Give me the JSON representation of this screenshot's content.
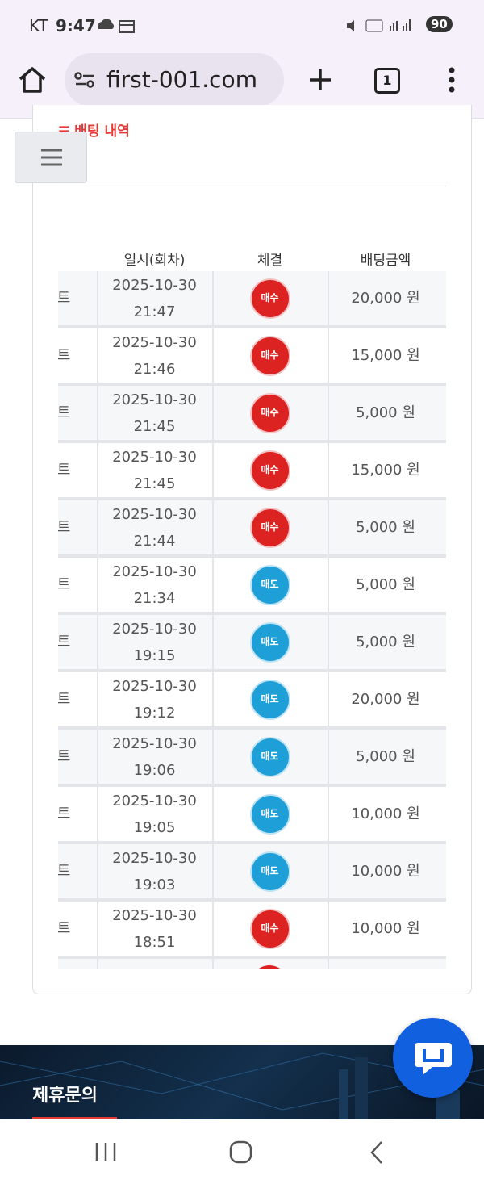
{
  "status_bar": {
    "carrier": "KT",
    "time": "9:47",
    "battery": "90"
  },
  "browser": {
    "url": "first-001.com",
    "tab_count": "1"
  },
  "section": {
    "title": "배팅 내역"
  },
  "table": {
    "headers": [
      "일시(회차)",
      "체결",
      "배팅금액"
    ],
    "rows": [
      {
        "game": "트",
        "date": "2025-10-30",
        "time": "21:47",
        "side": "매수",
        "amount": "20,000 원"
      },
      {
        "game": "트",
        "date": "2025-10-30",
        "time": "21:46",
        "side": "매수",
        "amount": "15,000 원"
      },
      {
        "game": "트",
        "date": "2025-10-30",
        "time": "21:45",
        "side": "매수",
        "amount": "5,000 원"
      },
      {
        "game": "트",
        "date": "2025-10-30",
        "time": "21:45",
        "side": "매수",
        "amount": "15,000 원"
      },
      {
        "game": "트",
        "date": "2025-10-30",
        "time": "21:44",
        "side": "매수",
        "amount": "5,000 원"
      },
      {
        "game": "트",
        "date": "2025-10-30",
        "time": "21:34",
        "side": "매도",
        "amount": "5,000 원"
      },
      {
        "game": "트",
        "date": "2025-10-30",
        "time": "19:15",
        "side": "매도",
        "amount": "5,000 원"
      },
      {
        "game": "트",
        "date": "2025-10-30",
        "time": "19:12",
        "side": "매도",
        "amount": "20,000 원"
      },
      {
        "game": "트",
        "date": "2025-10-30",
        "time": "19:06",
        "side": "매도",
        "amount": "5,000 원"
      },
      {
        "game": "트",
        "date": "2025-10-30",
        "time": "19:05",
        "side": "매도",
        "amount": "10,000 원"
      },
      {
        "game": "트",
        "date": "2025-10-30",
        "time": "19:03",
        "side": "매도",
        "amount": "10,000 원"
      },
      {
        "game": "트",
        "date": "2025-10-30",
        "time": "18:51",
        "side": "매수",
        "amount": "10,000 원"
      }
    ]
  },
  "footer": {
    "title": "제휴문의"
  }
}
